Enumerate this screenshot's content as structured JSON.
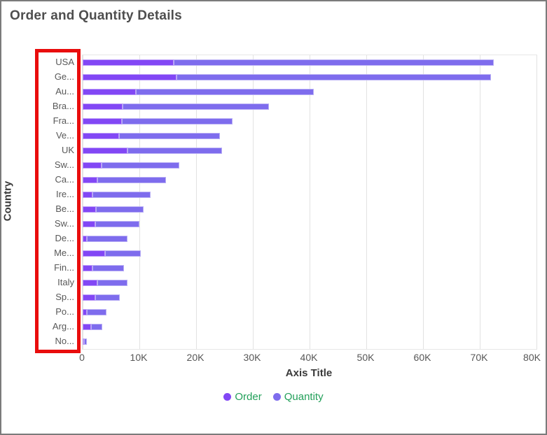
{
  "header": {
    "title": "Order and Quantity Details",
    "title_color": "#4e4e4e"
  },
  "chart_data": {
    "type": "bar",
    "orientation": "horizontal",
    "stacked": true,
    "xlabel": "Axis Title",
    "ylabel": "Country",
    "xlim": [
      0,
      80000
    ],
    "x_ticks": [
      "0",
      "10K",
      "20K",
      "30K",
      "40K",
      "50K",
      "60K",
      "70K",
      "80K"
    ],
    "grid": true,
    "legend_position": "bottom",
    "legend_text_color": "#23a05a",
    "categories": [
      "USA",
      "Ge...",
      "Au...",
      "Bra...",
      "Fra...",
      "Ve...",
      "UK",
      "Sw...",
      "Ca...",
      "Ire...",
      "Be...",
      "Sw...",
      "De...",
      "Me...",
      "Fin...",
      "Italy",
      "Sp...",
      "Po...",
      "Arg...",
      "No..."
    ],
    "series": [
      {
        "name": "Order",
        "color": "#8247f5",
        "values": [
          16000,
          16600,
          9400,
          7000,
          6900,
          6400,
          7900,
          3300,
          2600,
          1700,
          2400,
          2200,
          800,
          4000,
          1700,
          2600,
          2200,
          800,
          1500,
          200
        ]
      },
      {
        "name": "Quantity",
        "color": "#7e6ced",
        "values": [
          56500,
          55400,
          31300,
          25900,
          19500,
          17800,
          16700,
          13700,
          12100,
          10300,
          8400,
          7800,
          7100,
          6300,
          5600,
          5300,
          4400,
          3400,
          2000,
          500
        ]
      }
    ]
  },
  "annotation": {
    "type": "red-rectangle",
    "color": "#e90d0d"
  }
}
